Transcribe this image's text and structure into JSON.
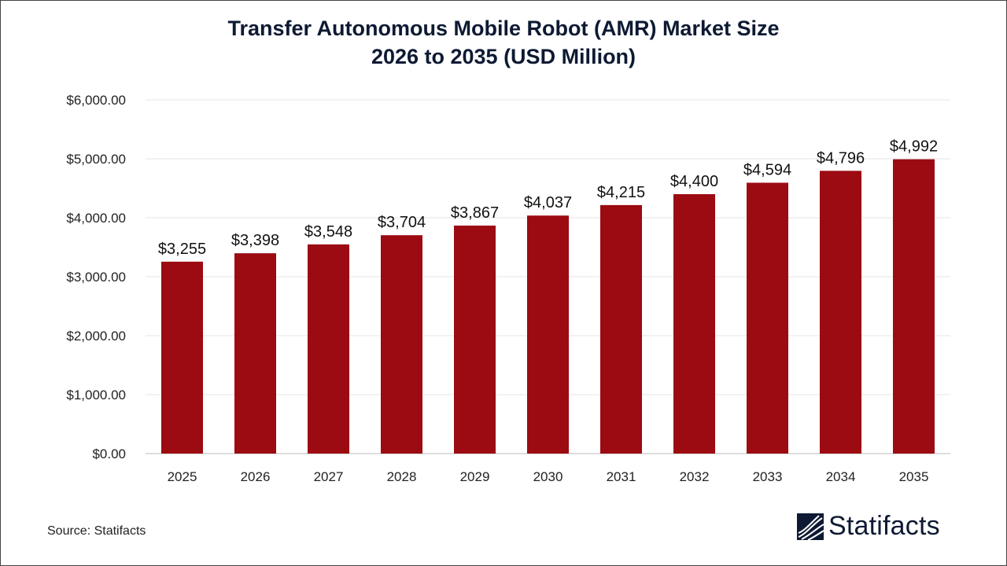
{
  "chart_data": {
    "type": "bar",
    "title": "Transfer Autonomous Mobile Robot (AMR) Market Size",
    "subtitle": "2026 to 2035 (USD Million)",
    "categories": [
      "2025",
      "2026",
      "2027",
      "2028",
      "2029",
      "2030",
      "2031",
      "2032",
      "2033",
      "2034",
      "2035"
    ],
    "values": [
      3255,
      3398,
      3548,
      3704,
      3867,
      4037,
      4215,
      4400,
      4594,
      4796,
      4992
    ],
    "data_labels": [
      "$3,255",
      "$3,398",
      "$3,548",
      "$3,704",
      "$3,867",
      "$4,037",
      "$4,215",
      "$4,400",
      "$4,594",
      "$4,796",
      "$4,992"
    ],
    "yticks": [
      0,
      1000,
      2000,
      3000,
      4000,
      5000,
      6000
    ],
    "ytick_labels": [
      "$0.00",
      "$1,000.00",
      "$2,000.00",
      "$3,000.00",
      "$4,000.00",
      "$5,000.00",
      "$6,000.00"
    ],
    "ylim": [
      0,
      6000
    ],
    "grid": true,
    "bar_color": "#9c0a12",
    "xlabel": "",
    "ylabel": ""
  },
  "source": "Source: Statifacts",
  "logo": {
    "text": "Statifacts",
    "color": "#0e1a33"
  }
}
